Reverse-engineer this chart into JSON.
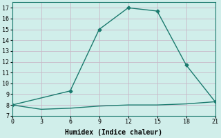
{
  "line1_x": [
    0,
    6,
    9,
    12,
    15,
    18,
    21
  ],
  "line1_y": [
    8.0,
    9.3,
    15.0,
    17.0,
    16.7,
    11.7,
    8.3
  ],
  "line2_x": [
    0,
    3,
    6,
    9,
    12,
    15,
    18,
    21
  ],
  "line2_y": [
    8.0,
    7.6,
    7.7,
    7.9,
    8.0,
    8.0,
    8.1,
    8.3
  ],
  "line_color": "#1a7a6e",
  "bg_color": "#d0eeea",
  "grid_color": "#c8b8c8",
  "xlabel": "Humidex (Indice chaleur)",
  "xlim": [
    0,
    21
  ],
  "ylim": [
    7,
    17.5
  ],
  "xticks": [
    0,
    3,
    6,
    9,
    12,
    15,
    18,
    21
  ],
  "yticks": [
    7,
    8,
    9,
    10,
    11,
    12,
    13,
    14,
    15,
    16,
    17
  ],
  "marker": "D",
  "marker_size": 2.5,
  "line_width": 1.0
}
